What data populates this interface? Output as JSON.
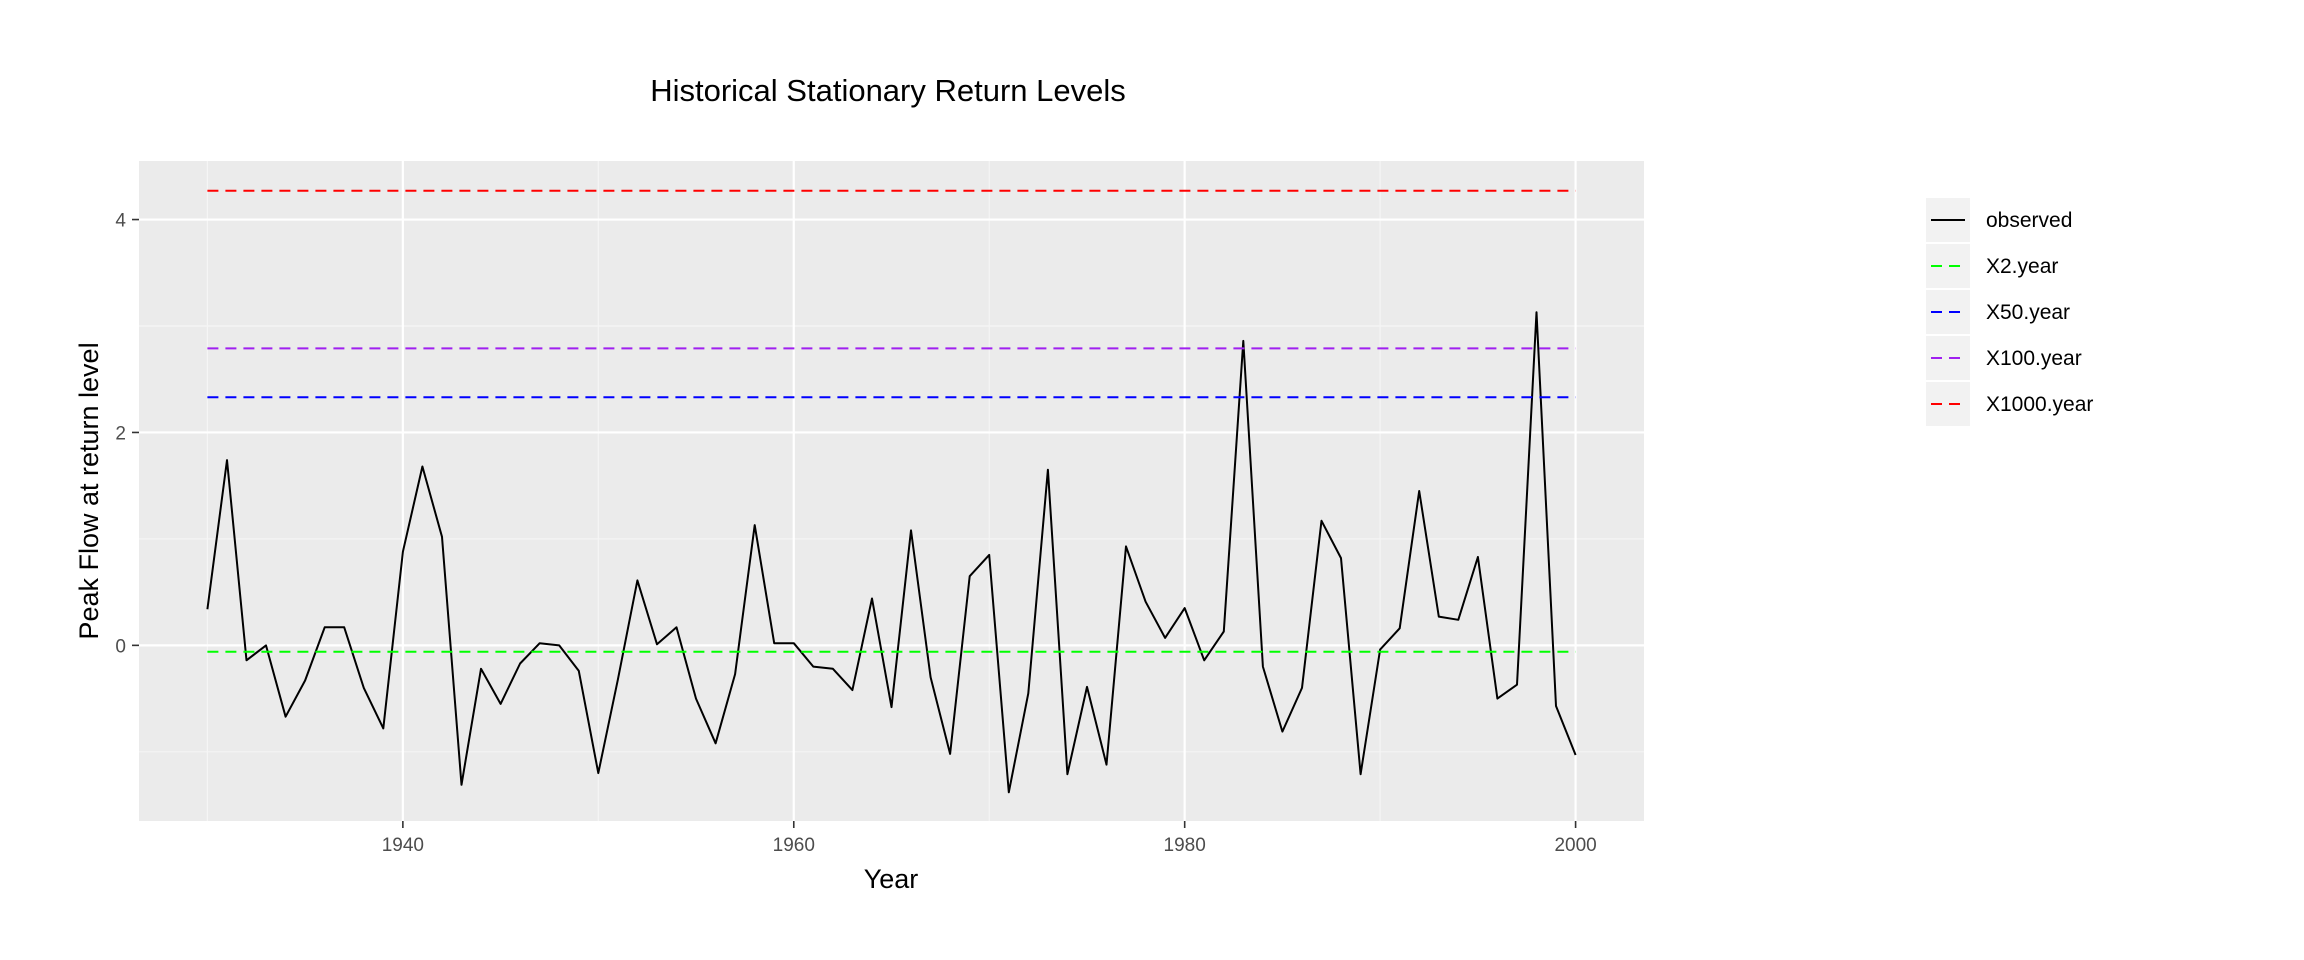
{
  "chart_data": {
    "type": "line",
    "title": "Historical Stationary Return Levels",
    "xlabel": "Year",
    "ylabel": "Peak Flow at return level",
    "xlim": [
      1926.5,
      2003.5
    ],
    "ylim": [
      -1.65,
      4.55
    ],
    "x_ticks": [
      1940,
      1960,
      1980,
      2000
    ],
    "y_ticks": [
      0,
      2,
      4
    ],
    "grid": true,
    "legend_position": "right",
    "series": [
      {
        "name": "observed",
        "color": "#000000",
        "style": "solid",
        "x": [
          1930,
          1931,
          1932,
          1933,
          1934,
          1935,
          1936,
          1937,
          1938,
          1939,
          1940,
          1941,
          1942,
          1943,
          1944,
          1945,
          1946,
          1947,
          1948,
          1949,
          1950,
          1951,
          1952,
          1953,
          1954,
          1955,
          1956,
          1957,
          1958,
          1959,
          1960,
          1961,
          1962,
          1963,
          1964,
          1965,
          1966,
          1967,
          1968,
          1969,
          1970,
          1971,
          1972,
          1973,
          1974,
          1975,
          1976,
          1977,
          1978,
          1979,
          1980,
          1981,
          1982,
          1983,
          1984,
          1985,
          1986,
          1987,
          1988,
          1989,
          1990,
          1991,
          1992,
          1993,
          1994,
          1995,
          1996,
          1997,
          1998,
          1999,
          2000
        ],
        "y": [
          0.34,
          1.74,
          -0.14,
          0.0,
          -0.67,
          -0.33,
          0.17,
          0.17,
          -0.4,
          -0.78,
          0.88,
          1.68,
          1.02,
          -1.31,
          -0.22,
          -0.55,
          -0.17,
          0.02,
          0.0,
          -0.24,
          -1.2,
          -0.32,
          0.61,
          0.01,
          0.17,
          -0.5,
          -0.92,
          -0.27,
          1.13,
          0.02,
          0.02,
          -0.2,
          -0.22,
          -0.42,
          0.44,
          -0.58,
          1.08,
          -0.3,
          -1.02,
          0.65,
          0.85,
          -1.38,
          -0.45,
          1.65,
          -1.21,
          -0.39,
          -1.12,
          0.93,
          0.41,
          0.07,
          0.35,
          -0.14,
          0.13,
          2.86,
          -0.2,
          -0.81,
          -0.4,
          1.17,
          0.82,
          -1.21,
          -0.04,
          0.16,
          1.45,
          0.27,
          0.24,
          0.83,
          -0.5,
          -0.37,
          3.13,
          -0.57,
          -1.03
        ]
      },
      {
        "name": "X2.year",
        "color": "#00ff00",
        "style": "dashed",
        "x": [
          1930,
          2000
        ],
        "y": [
          -0.06,
          -0.06
        ]
      },
      {
        "name": "X50.year",
        "color": "#0000ff",
        "style": "dashed",
        "x": [
          1930,
          2000
        ],
        "y": [
          2.33,
          2.33
        ]
      },
      {
        "name": "X100.year",
        "color": "#a020f0",
        "style": "dashed",
        "x": [
          1930,
          2000
        ],
        "y": [
          2.79,
          2.79
        ]
      },
      {
        "name": "X1000.year",
        "color": "#ff0000",
        "style": "dashed",
        "x": [
          1930,
          2000
        ],
        "y": [
          4.27,
          4.27
        ]
      }
    ]
  }
}
